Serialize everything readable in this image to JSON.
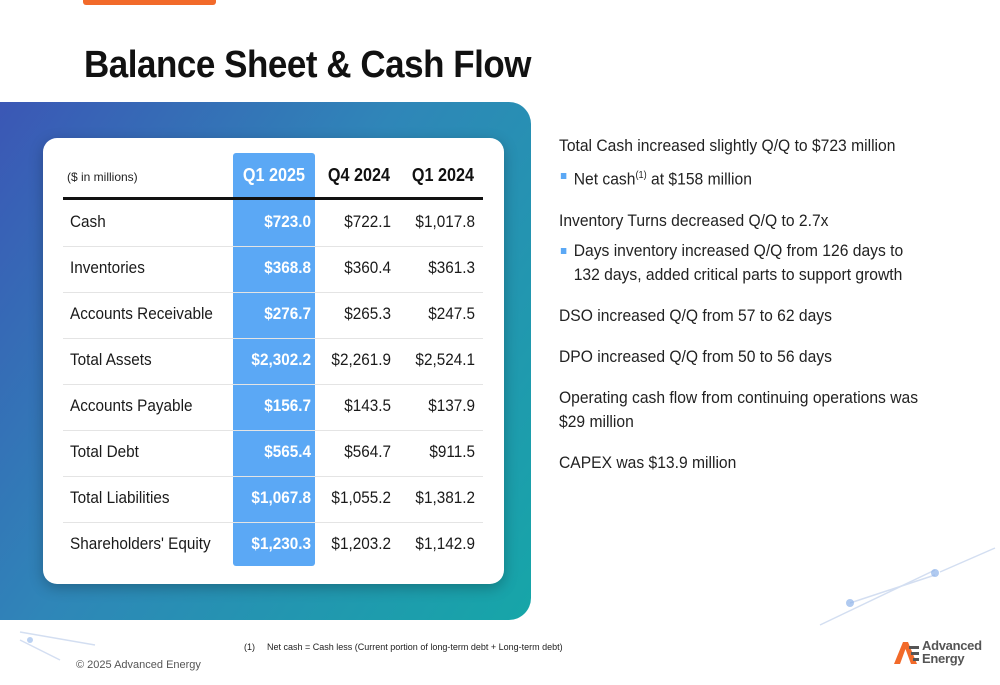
{
  "slide": {
    "title": "Balance Sheet & Cash Flow"
  },
  "table": {
    "units_label": "($ in millions)",
    "columns": [
      "Q1 2025",
      "Q4 2024",
      "Q1 2024"
    ],
    "rows": [
      {
        "label": "Cash",
        "values": [
          "$723.0",
          "$722.1",
          "$1,017.8"
        ]
      },
      {
        "label": "Inventories",
        "values": [
          "$368.8",
          "$360.4",
          "$361.3"
        ]
      },
      {
        "label": "Accounts Receivable",
        "values": [
          "$276.7",
          "$265.3",
          "$247.5"
        ]
      },
      {
        "label": "Total Assets",
        "values": [
          "$2,302.2",
          "$2,261.9",
          "$2,524.1"
        ]
      },
      {
        "label": "Accounts Payable",
        "values": [
          "$156.7",
          "$143.5",
          "$137.9"
        ]
      },
      {
        "label": "Total Debt",
        "values": [
          "$565.4",
          "$564.7",
          "$911.5"
        ]
      },
      {
        "label": "Total Liabilities",
        "values": [
          "$1,067.8",
          "$1,055.2",
          "$1,381.2"
        ]
      },
      {
        "label": "Shareholders' Equity",
        "values": [
          "$1,230.3",
          "$1,203.2",
          "$1,142.9"
        ]
      }
    ]
  },
  "commentary": {
    "cash_line": "Total Cash increased slightly Q/Q to $723 million",
    "net_cash_pre": "Net cash",
    "net_cash_sup": "(1)",
    "net_cash_post": " at $158 million",
    "inventory_line": "Inventory Turns decreased Q/Q to 2.7x",
    "inventory_bullet": "Days inventory increased Q/Q from 126 days to 132 days, added critical parts to support growth",
    "dso_line": "DSO increased Q/Q from 57 to 62 days",
    "dpo_line": "DPO increased Q/Q from 50 to 56 days",
    "ocf_line": "Operating cash flow from continuing operations was $29 million",
    "capex_line": "CAPEX was $13.9 million"
  },
  "footer": {
    "footnote_num": "(1)",
    "footnote_text": "Net cash = Cash less (Current portion of long-term debt + Long-term debt)",
    "copyright": "© 2025 Advanced Energy",
    "logo_line1": "Advanced",
    "logo_line2": "Energy"
  },
  "colors": {
    "accent_orange": "#f26a2a",
    "highlight_blue": "#5ba8f5",
    "panel_gradient_start": "#3b57b5",
    "panel_gradient_end": "#16a6a8"
  }
}
